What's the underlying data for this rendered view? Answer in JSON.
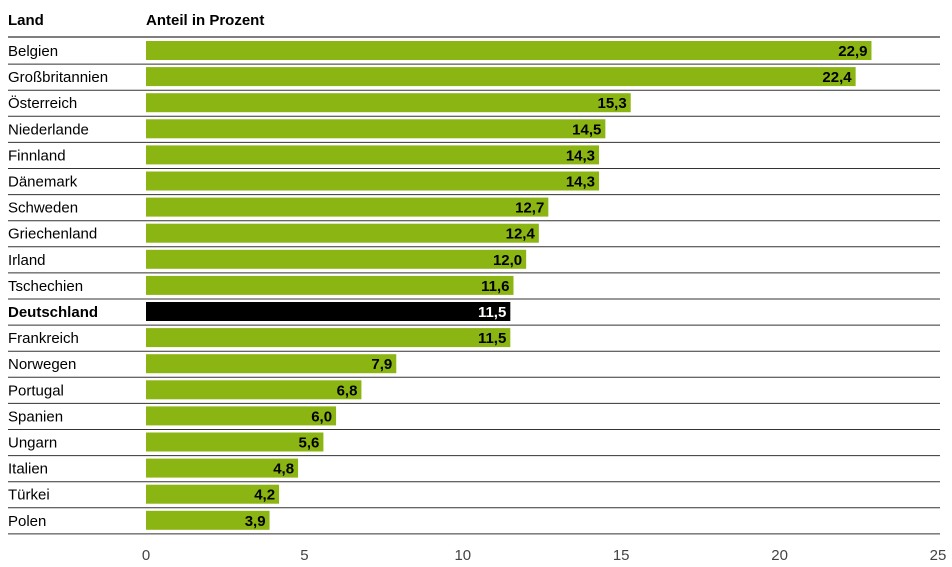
{
  "chart_data": {
    "type": "bar",
    "orientation": "horizontal",
    "column_headers": {
      "category": "Land",
      "value": "Anteil in Prozent"
    },
    "categories": [
      "Belgien",
      "Großbritannien",
      "Österreich",
      "Niederlande",
      "Finnland",
      "Dänemark",
      "Schweden",
      "Griechenland",
      "Irland",
      "Tschechien",
      "Deutschland",
      "Frankreich",
      "Norwegen",
      "Portugal",
      "Spanien",
      "Ungarn",
      "Italien",
      "Türkei",
      "Polen"
    ],
    "values": [
      22.9,
      22.4,
      15.3,
      14.5,
      14.3,
      14.3,
      12.7,
      12.4,
      12.0,
      11.6,
      11.5,
      11.5,
      7.9,
      6.8,
      6.0,
      5.6,
      4.8,
      4.2,
      3.9
    ],
    "value_labels": [
      "22,9",
      "22,4",
      "15,3",
      "14,5",
      "14,3",
      "14,3",
      "12,7",
      "12,4",
      "12,0",
      "11,6",
      "11,5",
      "11,5",
      "7,9",
      "6,8",
      "6,0",
      "5,6",
      "4,8",
      "4,2",
      "3,9"
    ],
    "highlight": "Deutschland",
    "xlim": [
      0,
      25
    ],
    "xticks": [
      0,
      5,
      10,
      15,
      20,
      25
    ],
    "xtick_labels": [
      "0",
      "5",
      "10",
      "15",
      "20",
      "25"
    ],
    "grid": false,
    "legend": "none",
    "colors": {
      "bar": "#8bb512",
      "highlight": "#000000",
      "rule": "#333333"
    }
  }
}
